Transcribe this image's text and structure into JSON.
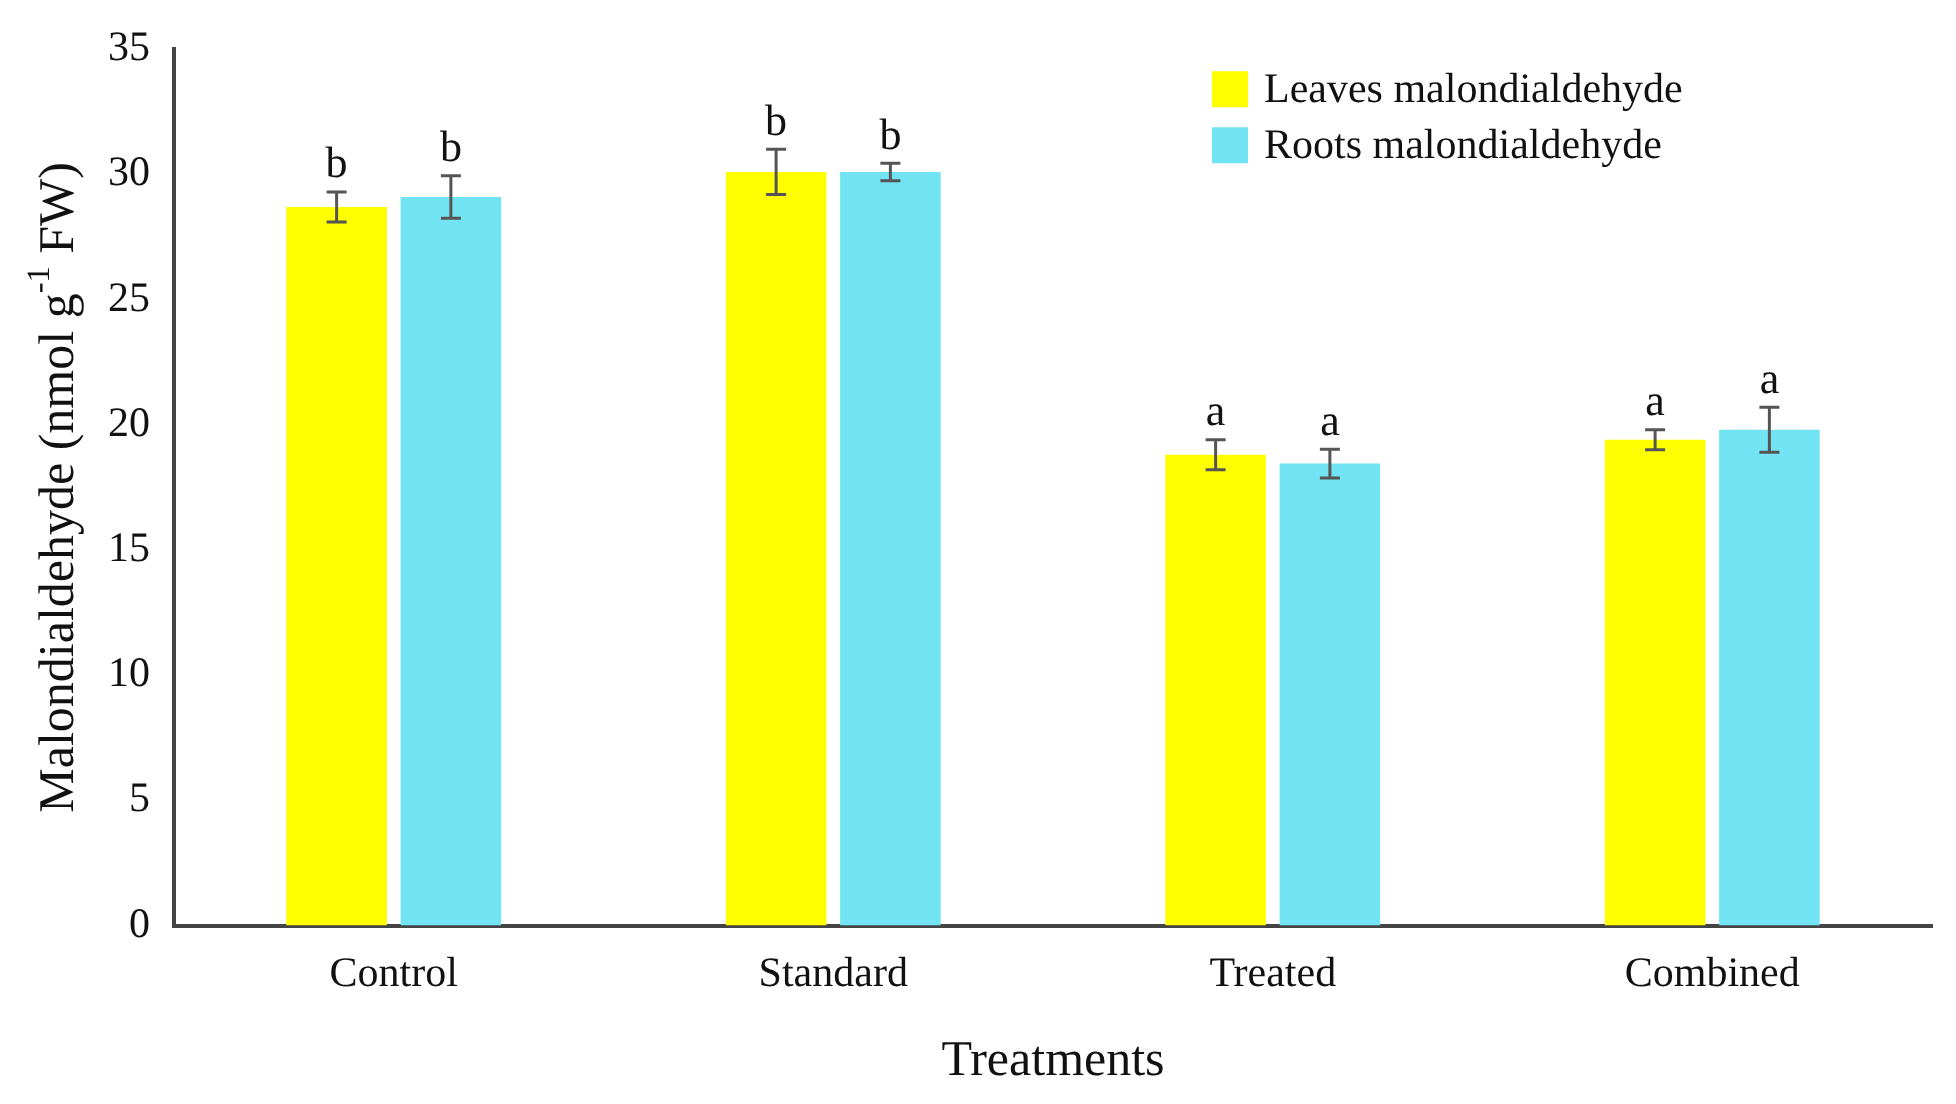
{
  "chart_data": {
    "type": "bar",
    "xlabel": "Treatments",
    "ylabel": "Malondialdehyde (nmol g$^{-1}$ FW)",
    "categories": [
      "Control",
      "Standard",
      "Treated",
      "Combined"
    ],
    "series": [
      {
        "name": "Leaves malondialdehyde",
        "color": "#ffff00",
        "values": [
          28.7,
          30.1,
          18.8,
          19.4
        ],
        "errors": [
          0.6,
          0.9,
          0.6,
          0.4
        ],
        "value_labels": [
          "b",
          "b",
          "a",
          "a"
        ]
      },
      {
        "name": "Roots malondialdehyde",
        "color": "#72e3f3",
        "values": [
          29.1,
          30.1,
          18.45,
          19.8
        ],
        "errors": [
          0.85,
          0.35,
          0.57,
          0.9
        ],
        "value_labels": [
          "b",
          "b",
          "a",
          "a"
        ]
      }
    ],
    "ylim": [
      0,
      35
    ],
    "yticks": [
      0,
      5,
      10,
      15,
      20,
      25,
      30,
      35
    ],
    "grid": false,
    "legend": "top right"
  }
}
